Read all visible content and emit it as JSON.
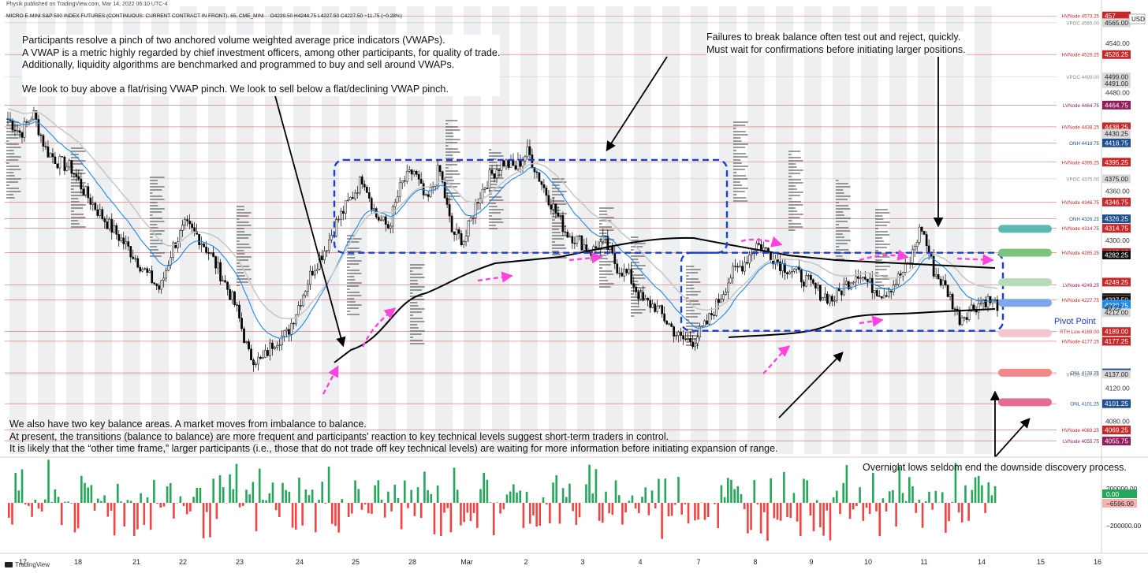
{
  "header": {
    "publisher": "Physik published on TradingView.com, Mar 14, 2022 06:10 UTC-4",
    "instrument": "MICRO E-MINI S&P 500 INDEX FUTURES (CONTINUOUS: CURRENT CONTRACT IN FRONT), 65, CME_MINI",
    "ohlc": "O4239.50  H4244.75  L4227.50  C4227.50  −11.75 (−0.28%)"
  },
  "currency_label": "USD",
  "notes": {
    "top_left": [
      "Participants resolve a pinch of two anchored volume weighted average price indicators (VWAPs).",
      "A VWAP is a metric highly regarded by chief investment officers, among other participants, for quality of trade.",
      "Additionally, liquidity algorithms are benchmarked and programmed to buy and sell around VWAPs.",
      "",
      "We look to buy above a flat/rising VWAP pinch. We look to sell below a flat/declining VWAP pinch."
    ],
    "top_right": [
      "Failures to break balance often test out and reject, quickly.",
      "Must wait for confirmations before initiating larger positions."
    ],
    "bottom_left": [
      "We also have two key balance areas. A market moves from imbalance to balance.",
      "At present, the transitions (balance to balance) are more frequent and participants’ reaction to key technical levels suggest short-term traders in control.",
      "It is likely that the “other time frame,” larger participants (i.e., those that do not trade off key technical levels) are waiting for more information before initiating expansion of range."
    ],
    "bottom_right": [
      "Overnight lows seldom end the downside discovery process."
    ],
    "pivot_label": "Pivot Point"
  },
  "footer": {
    "brand": "TradingView"
  },
  "colors": {
    "up": "#26a65b",
    "down": "#ef4444",
    "vwap": "#1e88e5",
    "anchored_vwap": "#000000",
    "balance_box": "#1a3fd6",
    "arrow_pink": "#ff44dd",
    "level_line": "#d23b3b"
  },
  "chart_data": {
    "type": "candlestick",
    "timeframe_minutes": 65,
    "x_tick_labels": [
      "17",
      "18",
      "21",
      "22",
      "23",
      "24",
      "25",
      "28",
      "Mar",
      "2",
      "3",
      "4",
      "7",
      "8",
      "9",
      "10",
      "11",
      "14",
      "15",
      "16"
    ],
    "ylim": [
      4040,
      4585
    ],
    "y_tick_labels": [
      {
        "y": 4540,
        "label": "4540.00"
      },
      {
        "y": 4480,
        "label": "4480.00"
      },
      {
        "y": 4360,
        "label": "4360.00"
      },
      {
        "y": 4300,
        "label": "4300.00"
      },
      {
        "y": 4120,
        "label": "4120.00"
      },
      {
        "y": 4080,
        "label": "4080.00"
      }
    ],
    "levels": [
      {
        "name": "HVNode 4573.25",
        "y": 4573.25,
        "badge": "457",
        "badge_color": "#c62828"
      },
      {
        "name": "VPOC 4565.00",
        "y": 4565.0,
        "badge": "4565.00",
        "badge_color": "#d9d9d9"
      },
      {
        "name": "HVNode 4526.25",
        "y": 4526.25,
        "badge": "4526.25",
        "badge_color": "#c62828"
      },
      {
        "name": "VPOC 4499.00",
        "y": 4499.0,
        "badge": "4499.00",
        "badge_color": "#d9d9d9"
      },
      {
        "name": "",
        "y": 4491.0,
        "badge": "4491.00",
        "badge_color": "#d9d9d9"
      },
      {
        "name": "LVNode 4464.75",
        "y": 4464.75,
        "badge": "4464.75",
        "badge_color": "#8e1b5a"
      },
      {
        "name": "HVNode 4438.25",
        "y": 4438.25,
        "badge": "4438.25",
        "badge_color": "#c62828"
      },
      {
        "name": "",
        "y": 4430.25,
        "badge": "4430.25",
        "badge_color": "#d9d9d9"
      },
      {
        "name": "ONH 4418.75",
        "y": 4418.75,
        "badge": "4418.75",
        "badge_color": "#1f4e8c"
      },
      {
        "name": "HVNode 4395.25",
        "y": 4395.25,
        "badge": "4395.25",
        "badge_color": "#c62828"
      },
      {
        "name": "VPOC 4375.00",
        "y": 4375.0,
        "badge": "4375.00",
        "badge_color": "#d9d9d9"
      },
      {
        "name": "HVNode 4346.75",
        "y": 4346.75,
        "badge": "4346.75",
        "badge_color": "#c62828"
      },
      {
        "name": "ONH 4326.25",
        "y": 4326.25,
        "badge": "4326.25",
        "badge_color": "#1f4e8c"
      },
      {
        "name": "HVNode 4314.75",
        "y": 4314.75,
        "badge": "4314.75",
        "badge_color": "#c62828"
      },
      {
        "name": "HVNode 4285.25",
        "y": 4285.25,
        "badge": "4285.25",
        "badge_color": "#c62828"
      },
      {
        "name": "",
        "y": 4282.25,
        "badge": "4282.25",
        "badge_color": "#111111"
      },
      {
        "name": "",
        "y": 4249.25,
        "badge": "4249.25",
        "badge_color": "#c62828"
      },
      {
        "name": "LVNode 4249.25",
        "y": 4246.0,
        "badge": "",
        "badge_color": "#8e1b5a"
      },
      {
        "name": "",
        "y": 4230.25,
        "badge": "4230.25",
        "badge_color": "#111111"
      },
      {
        "name": "",
        "y": 4228.0,
        "badge": "4228.00",
        "badge_color": "#d9d9d9"
      },
      {
        "name": "HVNode 4227.75",
        "y": 4227.75,
        "badge": "4227.75",
        "badge_color": "#c62828"
      },
      {
        "name": "",
        "y": 4227.5,
        "badge": "4227.50",
        "badge_color": "#111111"
      },
      {
        "name": "",
        "y": 4222.5,
        "badge": "4222.50",
        "badge_color": "#1e88e5"
      },
      {
        "name": "",
        "y": 4221.0,
        "badge": "4221.00",
        "badge_color": "#d9d9d9"
      },
      {
        "name": "RTH Low 4189.00",
        "y": 4189.0,
        "badge": "",
        "badge_color": "#c62828"
      },
      {
        "name": "",
        "y": 4220.75,
        "badge": "4220.75",
        "badge_color": "#1e88e5"
      },
      {
        "name": "HVNode 4177.25",
        "y": 4177.25,
        "badge": "",
        "badge_color": "#c62828"
      },
      {
        "name": "",
        "y": 4212.0,
        "badge": "4212.00",
        "badge_color": "#d9d9d9"
      },
      {
        "name": "",
        "y": 4189.0,
        "badge": "4189.00",
        "badge_color": "#c62828"
      },
      {
        "name": "",
        "y": 4177.25,
        "badge": "4177.25",
        "badge_color": "#c62828"
      },
      {
        "name": "ONL 4138.75",
        "y": 4138.75,
        "badge": "4138.75",
        "badge_color": "#1f4e8c"
      },
      {
        "name": "VPOC 4137.00",
        "y": 4137.0,
        "badge": "4137.00",
        "badge_color": "#d9d9d9"
      },
      {
        "name": "ONL 4101.25",
        "y": 4101.25,
        "badge": "4101.25",
        "badge_color": "#1f4e8c"
      },
      {
        "name": "HVNode 4069.25",
        "y": 4069.25,
        "badge": "4069.25",
        "badge_color": "#c62828"
      },
      {
        "name": "LVNode 4055.75",
        "y": 4055.75,
        "badge": "4055.75",
        "badge_color": "#8e1b5a"
      }
    ],
    "countdown": "49:23",
    "last_price": 4227.5,
    "balance_areas": [
      {
        "x_start": "25",
        "x_end": "7",
        "y_low": 4285,
        "y_high": 4398
      },
      {
        "x_start": "7",
        "x_end": "14",
        "y_low": 4190,
        "y_high": 4285
      }
    ],
    "right_markers": [
      {
        "y": 4314,
        "color": "#5cb8b2"
      },
      {
        "y": 4285,
        "color": "#7cc47c"
      },
      {
        "y": 4249,
        "color": "#b7dcb7"
      },
      {
        "y": 4224,
        "color": "#7ea6ec"
      },
      {
        "y": 4187,
        "color": "#f4c6d0"
      },
      {
        "y": 4139,
        "color": "#f08a8a"
      },
      {
        "y": 4103,
        "color": "#e46d96"
      }
    ],
    "price_path": [
      [
        0,
        4448
      ],
      [
        2,
        4430
      ],
      [
        4,
        4455
      ],
      [
        6,
        4410
      ],
      [
        8,
        4395
      ],
      [
        10,
        4388
      ],
      [
        12,
        4360
      ],
      [
        14,
        4338
      ],
      [
        16,
        4318
      ],
      [
        18,
        4300
      ],
      [
        20,
        4280
      ],
      [
        22,
        4258
      ],
      [
        24,
        4240
      ],
      [
        26,
        4292
      ],
      [
        28,
        4318
      ],
      [
        30,
        4305
      ],
      [
        32,
        4282
      ],
      [
        34,
        4252
      ],
      [
        36,
        4218
      ],
      [
        38,
        4160
      ],
      [
        40,
        4152
      ],
      [
        42,
        4178
      ],
      [
        44,
        4186
      ],
      [
        46,
        4225
      ],
      [
        48,
        4264
      ],
      [
        50,
        4290
      ],
      [
        52,
        4325
      ],
      [
        54,
        4350
      ],
      [
        56,
        4378
      ],
      [
        58,
        4330
      ],
      [
        60,
        4316
      ],
      [
        62,
        4368
      ],
      [
        64,
        4385
      ],
      [
        66,
        4345
      ],
      [
        68,
        4388
      ],
      [
        70,
        4310
      ],
      [
        72,
        4300
      ],
      [
        74,
        4350
      ],
      [
        76,
        4378
      ],
      [
        78,
        4396
      ],
      [
        80,
        4388
      ],
      [
        82,
        4408
      ],
      [
        84,
        4372
      ],
      [
        86,
        4340
      ],
      [
        88,
        4310
      ],
      [
        90,
        4300
      ],
      [
        92,
        4286
      ],
      [
        94,
        4300
      ],
      [
        96,
        4268
      ],
      [
        98,
        4256
      ],
      [
        100,
        4226
      ],
      [
        102,
        4220
      ],
      [
        104,
        4200
      ],
      [
        106,
        4180
      ],
      [
        108,
        4178
      ],
      [
        110,
        4196
      ],
      [
        112,
        4226
      ],
      [
        114,
        4258
      ],
      [
        116,
        4272
      ],
      [
        118,
        4296
      ],
      [
        120,
        4285
      ],
      [
        122,
        4270
      ],
      [
        124,
        4262
      ],
      [
        126,
        4250
      ],
      [
        128,
        4236
      ],
      [
        130,
        4228
      ],
      [
        132,
        4245
      ],
      [
        134,
        4262
      ],
      [
        136,
        4245
      ],
      [
        138,
        4235
      ],
      [
        140,
        4250
      ],
      [
        142,
        4270
      ],
      [
        144,
        4318
      ],
      [
        146,
        4262
      ],
      [
        148,
        4240
      ],
      [
        150,
        4205
      ],
      [
        152,
        4218
      ],
      [
        154,
        4228
      ],
      [
        156,
        4222
      ]
    ],
    "volume_delta_labels": [
      "200000.00",
      "0.00",
      "−6596.00",
      "−200000.00"
    ]
  }
}
